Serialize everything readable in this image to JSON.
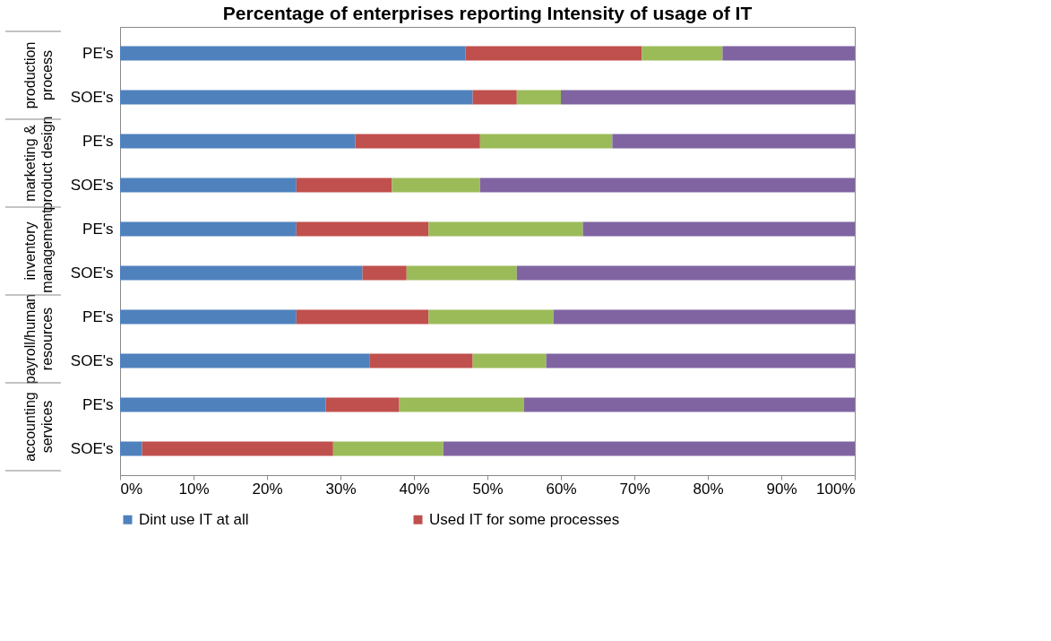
{
  "chart_data": {
    "type": "bar",
    "orientation": "horizontal",
    "stacked": true,
    "title": "Percentage of enterprises reporting Intensity of usage of IT",
    "categories": [
      "PE's",
      "SOE's",
      "PE's",
      "SOE's",
      "PE's",
      "SOE's",
      "PE's",
      "SOE's",
      "PE's",
      "SOE's"
    ],
    "annotations": [
      "production process",
      "marketing & product design",
      "inventory management",
      "payroll/human resources",
      "accounting services"
    ],
    "series": [
      {
        "name": "Dint use IT at all",
        "color": "#4f81bd",
        "values": [
          47,
          48,
          32,
          24,
          24,
          33,
          24,
          34,
          28,
          3
        ]
      },
      {
        "name": "Used IT for some processes",
        "color": "#c0504d",
        "values": [
          24,
          6,
          17,
          13,
          18,
          6,
          18,
          14,
          10,
          26
        ]
      },
      {
        "color": "#9bbb59",
        "values": [
          11,
          6,
          18,
          12,
          21,
          15,
          17,
          10,
          17,
          15
        ]
      },
      {
        "color": "#8064a2",
        "values": [
          18,
          40,
          33,
          51,
          37,
          46,
          41,
          42,
          45,
          56
        ]
      }
    ],
    "xlim": [
      0,
      100
    ],
    "xticks": [
      {
        "value": 0,
        "label": "0%"
      },
      {
        "value": 10,
        "label": "10%"
      },
      {
        "value": 20,
        "label": "20%"
      },
      {
        "value": 30,
        "label": "30%"
      },
      {
        "value": 40,
        "label": "40%"
      },
      {
        "value": 50,
        "label": "50%"
      },
      {
        "value": 60,
        "label": "60%"
      },
      {
        "value": 70,
        "label": "70%"
      },
      {
        "value": 80,
        "label": "80%"
      },
      {
        "value": 90,
        "label": "90%"
      },
      {
        "value": 100,
        "label": "100%"
      }
    ],
    "grid": false,
    "legend": "bottom"
  }
}
